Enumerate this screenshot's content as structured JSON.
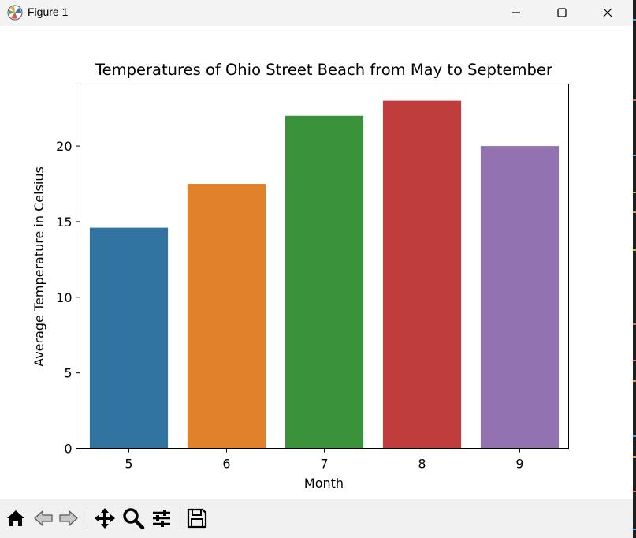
{
  "window": {
    "title": "Figure 1",
    "controls": {
      "minimize": "minimize",
      "maximize": "maximize",
      "close": "close"
    }
  },
  "toolbar": {
    "buttons": [
      {
        "name": "home-icon"
      },
      {
        "name": "back-icon"
      },
      {
        "name": "forward-icon"
      },
      {
        "name": "pan-icon"
      },
      {
        "name": "zoom-icon"
      },
      {
        "name": "configure-subplots-icon"
      },
      {
        "name": "save-icon"
      }
    ]
  },
  "chart_data": {
    "type": "bar",
    "title": "Temperatures of Ohio Street Beach from May to September",
    "xlabel": "Month",
    "ylabel": "Average Temperature in Celsius",
    "categories": [
      "5",
      "6",
      "7",
      "8",
      "9"
    ],
    "values": [
      14.6,
      17.5,
      22.0,
      23.0,
      20.0
    ],
    "colors": [
      "#3274a1",
      "#e1812c",
      "#3a923a",
      "#c03d3e",
      "#9372b2"
    ],
    "ylim": [
      0,
      24.1
    ],
    "yticks": [
      0,
      5,
      10,
      15,
      20
    ],
    "grid": false,
    "legend": "none"
  }
}
